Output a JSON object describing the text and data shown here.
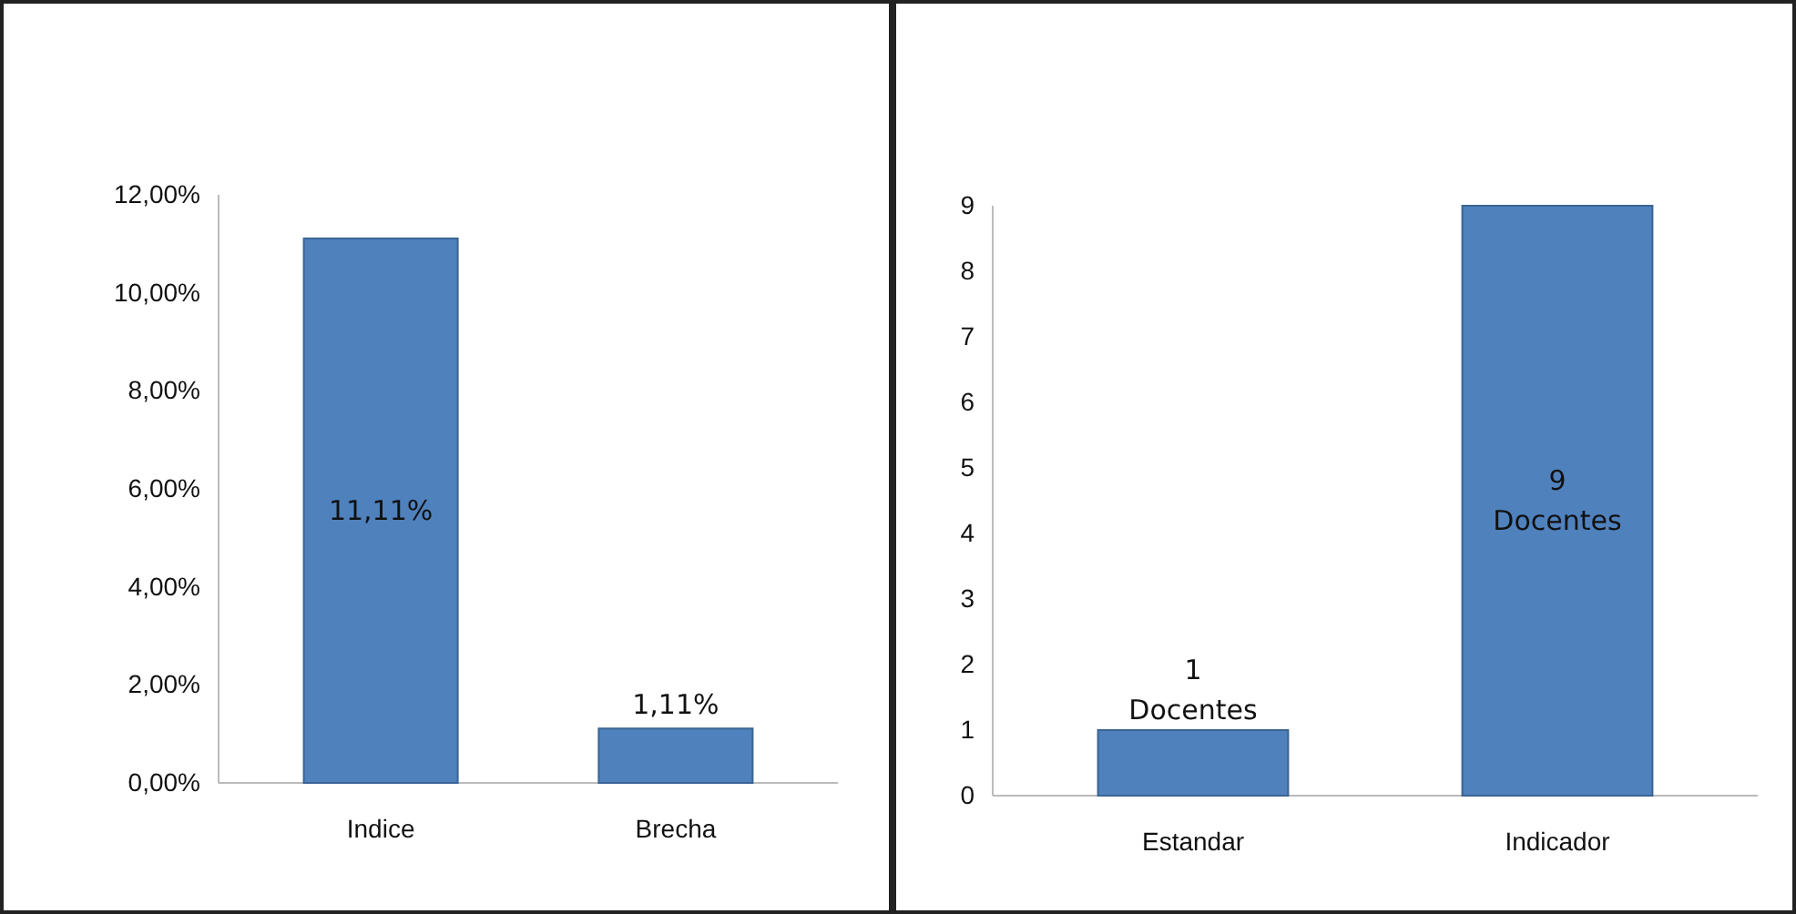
{
  "chart_data": [
    {
      "type": "bar",
      "categories": [
        "Indice",
        "Brecha"
      ],
      "values": [
        11.11,
        1.11
      ],
      "color": "#4f81bd",
      "ylim": [
        0,
        12
      ],
      "yticks": [
        {
          "value": 0,
          "label": "0,00%"
        },
        {
          "value": 2,
          "label": "2,00%"
        },
        {
          "value": 4,
          "label": "4,00%"
        },
        {
          "value": 6,
          "label": "6,00%"
        },
        {
          "value": 8,
          "label": "8,00%"
        },
        {
          "value": 10,
          "label": "10,00%"
        },
        {
          "value": 12,
          "label": "12,00%"
        }
      ],
      "value_labels": [
        "11,11%",
        "1,11%"
      ]
    },
    {
      "type": "bar",
      "categories": [
        "Estandar",
        "Indicador"
      ],
      "values": [
        1,
        9
      ],
      "color": "#4f81bd",
      "ylim": [
        0,
        9
      ],
      "yticks": [
        0,
        1,
        2,
        3,
        4,
        5,
        6,
        7,
        8,
        9
      ],
      "value_labels": [
        "1\nDocentes",
        "9\nDocentes"
      ]
    }
  ]
}
